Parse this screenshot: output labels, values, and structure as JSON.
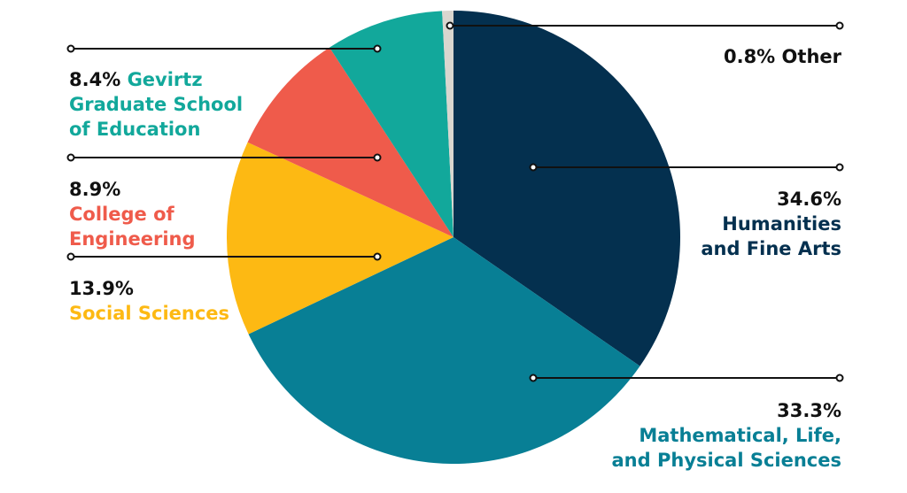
{
  "chart_data": {
    "type": "pie",
    "start_angle_deg": 0,
    "direction": "clockwise",
    "slices": [
      {
        "label": "Humanities and Fine Arts",
        "label_lines": [
          "Humanities",
          "and Fine Arts"
        ],
        "percent_text": "34.6%",
        "value": 34.6,
        "color": "#04304f"
      },
      {
        "label": "Mathematical, Life, and Physical Sciences",
        "label_lines": [
          "Mathematical, Life,",
          "and Physical Sciences"
        ],
        "percent_text": "33.3%",
        "value": 33.3,
        "color": "#087f95"
      },
      {
        "label": "Social Sciences",
        "label_lines": [
          "Social Sciences"
        ],
        "percent_text": "13.9%",
        "value": 13.9,
        "color": "#fdb913"
      },
      {
        "label": "College of Engineering",
        "label_lines": [
          "College of",
          "Engineering"
        ],
        "percent_text": "8.9%",
        "value": 8.9,
        "color": "#ef5b4b"
      },
      {
        "label": "Gevirtz Graduate School of Education",
        "label_lines": [
          "Gevirtz",
          "Graduate School",
          "of Education"
        ],
        "percent_text": "8.4%",
        "value": 8.4,
        "color": "#12a89b"
      },
      {
        "label": "Other",
        "label_lines": [
          "Other"
        ],
        "percent_text": "0.8%",
        "value": 0.8,
        "color": "#d9d6cf"
      }
    ]
  }
}
